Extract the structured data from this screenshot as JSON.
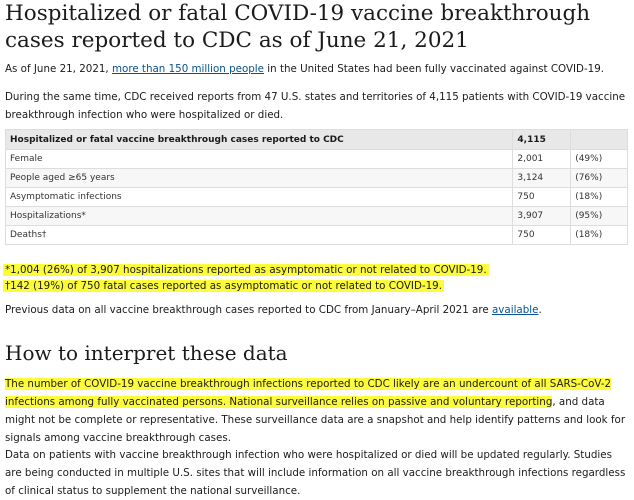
{
  "title": "Hospitalized or fatal COVID-19 vaccine breakthrough cases reported to CDC as of June 21, 2021",
  "intro": {
    "before_link": "As of June 21, 2021, ",
    "link_text": "more than 150 million people",
    "after_link": " in the United States had been fully vaccinated against COVID-19."
  },
  "paragraph2": "During the same time, CDC received reports from 47 U.S. states and territories of 4,115 patients with COVID-19 vaccine breakthrough infection who were hospitalized or died.",
  "table": {
    "header": {
      "label": "Hospitalized or fatal vaccine breakthrough cases reported to CDC",
      "count": "4,115",
      "percent": ""
    },
    "rows": [
      {
        "label": "Female",
        "count": "2,001",
        "percent": "(49%)"
      },
      {
        "label": "People aged ≥65 years",
        "count": "3,124",
        "percent": "(76%)"
      },
      {
        "label": "Asymptomatic infections",
        "count": "750",
        "percent": "(18%)"
      },
      {
        "label": "Hospitalizations*",
        "count": "3,907",
        "percent": "(95%)"
      },
      {
        "label": "Deaths†",
        "count": "750",
        "percent": "(18%)"
      }
    ]
  },
  "footnotes": [
    "*1,004 (26%) of 3,907 hospitalizations reported as asymptomatic or not related to COVID-19.",
    "†142 (19%) of 750 fatal cases reported as asymptomatic or not related to COVID-19."
  ],
  "previous": {
    "before_link": "Previous data on all vaccine breakthrough cases reported to CDC from January–April 2021 are ",
    "link_text": "available",
    "after_link": "."
  },
  "section_title": "How to interpret these data",
  "interpret1": {
    "highlighted": "The number of COVID-19 vaccine breakthrough infections reported to CDC likely are an undercount of all SARS-CoV-2 infections among fully vaccinated persons. National surveillance relies on passive and voluntary reporting",
    "rest": ", and data might not be complete or representative. These surveillance data are a snapshot and help identify patterns and look for signals among vaccine breakthrough cases."
  },
  "interpret2": "Data on patients with vaccine breakthrough infection who were hospitalized or died will be updated regularly. Studies are being conducted in multiple U.S. sites that will include information on all vaccine breakthrough infections regardless of clinical status to supplement the national surveillance.",
  "colors": {
    "highlight": "#fdfc3b",
    "link": "#075290",
    "table_header_bg": "#e8e8e8"
  }
}
